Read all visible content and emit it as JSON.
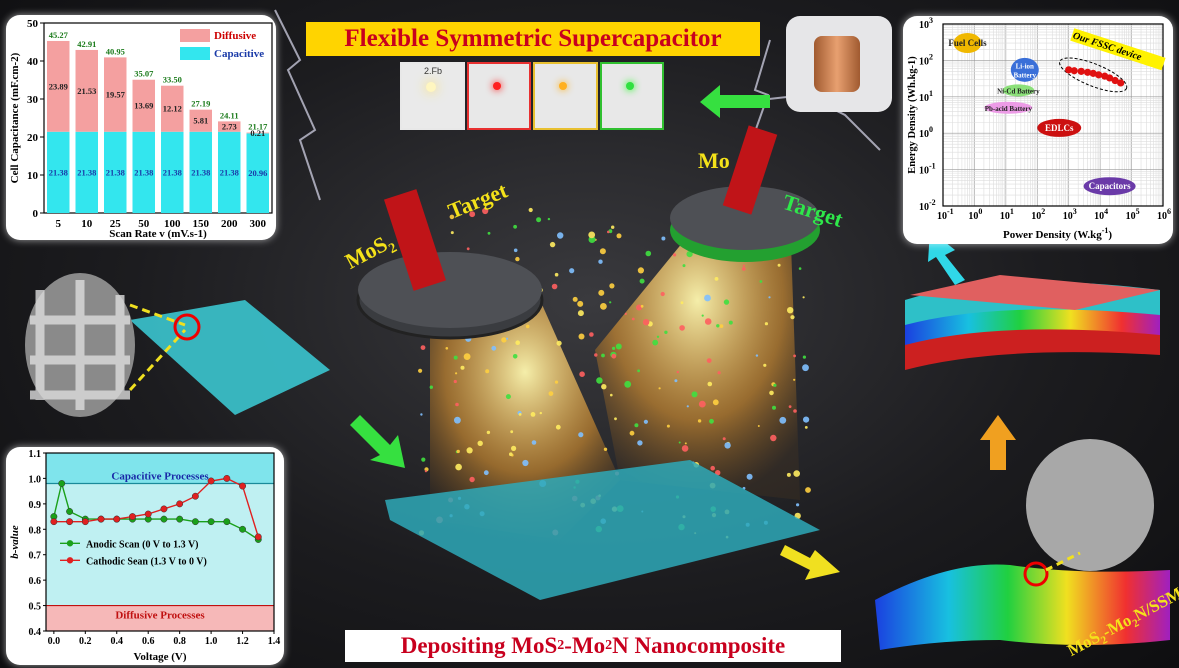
{
  "title": "Flexible Symmetric Supercapacitor",
  "bottom_label": {
    "pre": "Depositing MoS",
    "sub1": "2",
    "mid": "-Mo",
    "sub2": "2",
    "post": "N Nanocomposite"
  },
  "targets": {
    "left_material": "MoS",
    "left_material_sub": "2",
    "left_word": "Target",
    "right_material": "Mo",
    "right_word": "Target"
  },
  "substrate_label": {
    "text": "MoS",
    "sub1": "2",
    "mid": "-Mo",
    "sub2": "2",
    "post": "N/SSM"
  },
  "led_photo_label": "2.Fb",
  "colors": {
    "diffusive": "#f4a0a0",
    "capacitive": "#33e6ee",
    "title_bg": "#ffd400",
    "title_text": "#c8001e",
    "anodic": "#1aa01a",
    "cathodic": "#e02020"
  },
  "chart_data": [
    {
      "type": "bar",
      "stacked": true,
      "title": "",
      "xlabel": "Scan Rate v (mV.s-1)",
      "ylabel": "Cell Capacitance (mF.cm-2)",
      "ylim": [
        0,
        50
      ],
      "yticks": [
        "0",
        "10",
        "20",
        "30",
        "40",
        "50"
      ],
      "categories": [
        "5",
        "10",
        "25",
        "50",
        "100",
        "150",
        "200",
        "300"
      ],
      "totals": [
        "45.27",
        "42.91",
        "40.95",
        "35.07",
        "33.50",
        "27.19",
        "24.11",
        "21.17"
      ],
      "series": [
        {
          "name": "Capacitive",
          "values": [
            21.38,
            21.38,
            21.38,
            21.38,
            21.38,
            21.38,
            21.38,
            20.96
          ],
          "labels": [
            "21.38",
            "21.38",
            "21.38",
            "21.38",
            "21.38",
            "21.38",
            "21.38",
            "20.96"
          ]
        },
        {
          "name": "Diffusive",
          "values": [
            23.89,
            21.53,
            19.57,
            13.69,
            12.12,
            5.81,
            2.73,
            0.21
          ],
          "labels": [
            "23.89",
            "21.53",
            "19.57",
            "13.69",
            "12.12",
            "5.81",
            "2.73",
            "0.21"
          ]
        }
      ],
      "legend_position": "top-right"
    },
    {
      "type": "line",
      "xlabel": "Voltage (V)",
      "ylabel": "b-value",
      "xlim": [
        -0.05,
        1.4
      ],
      "ylim": [
        0.4,
        1.1
      ],
      "xticks": [
        "0.0",
        "0.2",
        "0.4",
        "0.6",
        "0.8",
        "1.0",
        "1.2",
        "1.4"
      ],
      "yticks": [
        "0.4",
        "0.5",
        "0.6",
        "0.7",
        "0.8",
        "0.9",
        "1.0",
        "1.1"
      ],
      "regions": [
        {
          "label": "Capacitive Processes",
          "y": 0.98
        },
        {
          "label": "Diffusive Processes",
          "y": 0.5
        }
      ],
      "series": [
        {
          "name": "Anodic Scan (0 V to 1.3 V)",
          "x": [
            0.0,
            0.05,
            0.1,
            0.2,
            0.3,
            0.4,
            0.5,
            0.6,
            0.7,
            0.8,
            0.9,
            1.0,
            1.1,
            1.2,
            1.3
          ],
          "y": [
            0.85,
            0.98,
            0.87,
            0.84,
            0.84,
            0.84,
            0.84,
            0.84,
            0.84,
            0.84,
            0.83,
            0.83,
            0.83,
            0.8,
            0.76
          ]
        },
        {
          "name": "Cathodic Sean (1.3 V to 0 V)",
          "x": [
            0.0,
            0.1,
            0.2,
            0.3,
            0.4,
            0.5,
            0.6,
            0.7,
            0.8,
            0.9,
            1.0,
            1.1,
            1.2,
            1.3
          ],
          "y": [
            0.83,
            0.83,
            0.83,
            0.84,
            0.84,
            0.85,
            0.86,
            0.88,
            0.9,
            0.93,
            0.99,
            1.0,
            0.97,
            0.77
          ]
        }
      ],
      "legend_position": "center"
    },
    {
      "type": "scatter",
      "xlabel": "Power Density (W.kg-1)",
      "ylabel": "Energy Density (Wh.kg-1)",
      "xscale": "log",
      "yscale": "log",
      "xlim": [
        0.1,
        1000000
      ],
      "ylim": [
        0.01,
        1000
      ],
      "xticks": [
        "10-1",
        "100",
        "101",
        "102",
        "103",
        "104",
        "105",
        "106"
      ],
      "yticks": [
        "10-2",
        "10-1",
        "100",
        "101",
        "102",
        "103"
      ],
      "regions": [
        {
          "label": "Fuel Cells",
          "color": "#f0b800"
        },
        {
          "label": "Li-ion Battery",
          "color": "#3a6fd8"
        },
        {
          "label": "Ni-Cd Battery",
          "color": "#8ce07a"
        },
        {
          "label": "Pb-acid Battery",
          "color": "#ec9be6"
        },
        {
          "label": "EDLCs",
          "color": "#cc1010"
        },
        {
          "label": "Capacitors",
          "color": "#6a3aa8"
        }
      ],
      "series": [
        {
          "name": "Our FSSC device",
          "x": [
            1000,
            1500,
            2500,
            4000,
            6000,
            9000,
            14000,
            20000,
            30000,
            45000
          ],
          "y": [
            55,
            52,
            50,
            47,
            44,
            40,
            37,
            33,
            28,
            24
          ]
        }
      ]
    }
  ]
}
